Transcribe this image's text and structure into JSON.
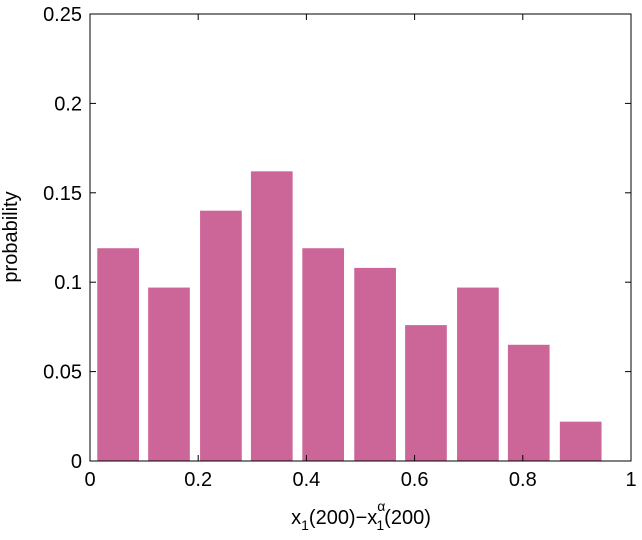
{
  "chart_data": {
    "type": "bar",
    "x": [
      0.052,
      0.146,
      0.242,
      0.336,
      0.431,
      0.527,
      0.621,
      0.717,
      0.811,
      0.907
    ],
    "values": [
      0.119,
      0.097,
      0.14,
      0.162,
      0.119,
      0.108,
      0.076,
      0.097,
      0.065,
      0.022
    ],
    "color": "#cc6699",
    "xlim": [
      0,
      1
    ],
    "xticks": [
      0,
      0.2,
      0.4,
      0.6,
      0.8,
      1
    ],
    "ylim": [
      0,
      0.25
    ],
    "yticks": [
      0,
      0.05,
      0.1,
      0.15,
      0.2,
      0.25
    ],
    "ylabel": "probability",
    "xlabel": [
      "x",
      "1",
      "(200)−x",
      "α",
      "1",
      "(200)"
    ],
    "grid": false
  }
}
